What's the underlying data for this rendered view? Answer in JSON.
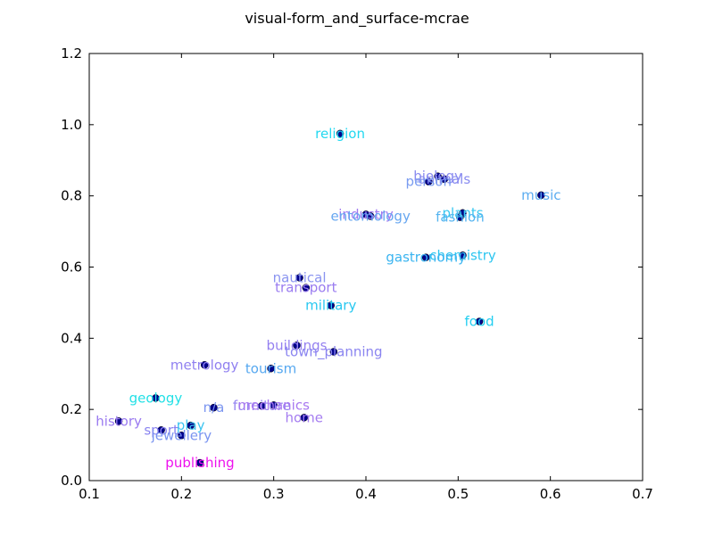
{
  "chart_data": {
    "type": "scatter",
    "title": "visual-form_and_surface-mcrae",
    "xlabel": "",
    "ylabel": "",
    "xlim": [
      0.1,
      0.7
    ],
    "ylim": [
      0.0,
      1.2
    ],
    "xticks": [
      "0.1",
      "0.2",
      "0.3",
      "0.4",
      "0.5",
      "0.6",
      "0.7"
    ],
    "yticks": [
      "0.0",
      "0.2",
      "0.4",
      "0.6",
      "0.8",
      "1.0",
      "1.2"
    ],
    "grid": false,
    "marker_color": "#00008b",
    "points": [
      {
        "label": "religion",
        "x": 0.372,
        "y": 0.975,
        "color": "#22d8f0"
      },
      {
        "label": "biology",
        "x": 0.478,
        "y": 0.855,
        "color": "#8a8cf0"
      },
      {
        "label": "animals",
        "x": 0.485,
        "y": 0.847,
        "color": "#8a8cf0"
      },
      {
        "label": "person",
        "x": 0.468,
        "y": 0.84,
        "color": "#7a9cf0"
      },
      {
        "label": "music",
        "x": 0.59,
        "y": 0.802,
        "color": "#5aacf0"
      },
      {
        "label": "industry",
        "x": 0.4,
        "y": 0.748,
        "color": "#a07af0"
      },
      {
        "label": "entomology",
        "x": 0.405,
        "y": 0.743,
        "color": "#66a6f0"
      },
      {
        "label": "plants",
        "x": 0.505,
        "y": 0.752,
        "color": "#3ac8f0"
      },
      {
        "label": "fashion",
        "x": 0.502,
        "y": 0.74,
        "color": "#55b4f0"
      },
      {
        "label": "chemistry",
        "x": 0.505,
        "y": 0.633,
        "color": "#2ec6f0"
      },
      {
        "label": "gastronomy",
        "x": 0.465,
        "y": 0.627,
        "color": "#3ab4f0"
      },
      {
        "label": "nautical",
        "x": 0.328,
        "y": 0.57,
        "color": "#8a94f0"
      },
      {
        "label": "transport",
        "x": 0.335,
        "y": 0.542,
        "color": "#9a7cf0"
      },
      {
        "label": "military",
        "x": 0.362,
        "y": 0.492,
        "color": "#28c8f0"
      },
      {
        "label": "food",
        "x": 0.523,
        "y": 0.447,
        "color": "#22cef0"
      },
      {
        "label": "buildings",
        "x": 0.325,
        "y": 0.38,
        "color": "#9480f0"
      },
      {
        "label": "town_planning",
        "x": 0.365,
        "y": 0.362,
        "color": "#8a84f0"
      },
      {
        "label": "metrology",
        "x": 0.225,
        "y": 0.325,
        "color": "#9080f0"
      },
      {
        "label": "tourism",
        "x": 0.297,
        "y": 0.315,
        "color": "#56a8f0"
      },
      {
        "label": "geology",
        "x": 0.172,
        "y": 0.232,
        "color": "#22e0e6"
      },
      {
        "label": "n/a",
        "x": 0.235,
        "y": 0.205,
        "color": "#7a94f0"
      },
      {
        "label": "furniture",
        "x": 0.287,
        "y": 0.21,
        "color": "#9484f0"
      },
      {
        "label": "mechanics",
        "x": 0.3,
        "y": 0.212,
        "color": "#a878f0"
      },
      {
        "label": "home",
        "x": 0.333,
        "y": 0.177,
        "color": "#a47cf0"
      },
      {
        "label": "history",
        "x": 0.132,
        "y": 0.167,
        "color": "#9a7af0"
      },
      {
        "label": "play",
        "x": 0.21,
        "y": 0.155,
        "color": "#3cc4f0"
      },
      {
        "label": "sport",
        "x": 0.178,
        "y": 0.142,
        "color": "#8a84f0"
      },
      {
        "label": "jewellery",
        "x": 0.2,
        "y": 0.127,
        "color": "#7a94f0"
      },
      {
        "label": "publishing",
        "x": 0.22,
        "y": 0.05,
        "color": "#ee10ee"
      }
    ]
  }
}
